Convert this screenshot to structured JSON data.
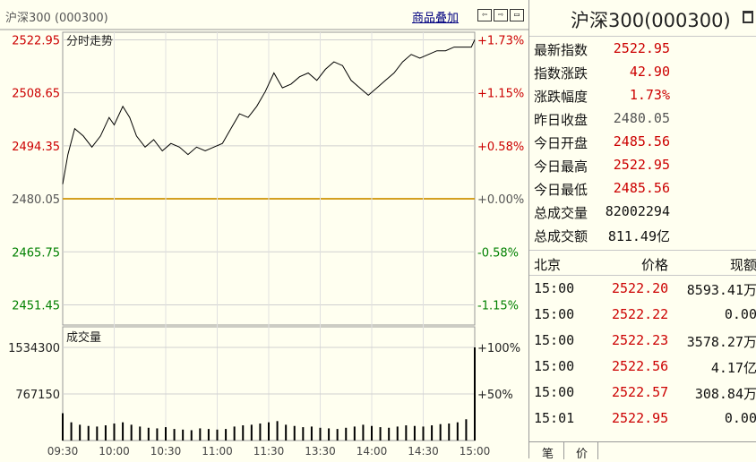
{
  "header": {
    "title": "沪深300 (000300)",
    "overlay_link": "商品叠加",
    "nav_buttons": [
      "⇦",
      "⇨",
      "▭"
    ]
  },
  "price_chart": {
    "label": "分时走势",
    "price_ticks": [
      "2522.95",
      "2508.65",
      "2494.35",
      "2480.05",
      "2465.75",
      "2451.45"
    ],
    "pct_ticks": [
      "+1.73%",
      "+1.15%",
      "+0.58%",
      "+0.00%",
      "-0.58%",
      "-1.15%"
    ]
  },
  "volume_chart": {
    "label": "成交量",
    "vol_ticks": [
      "1534300",
      "767150"
    ],
    "vol_pct_ticks": [
      "+100%",
      "+50%"
    ]
  },
  "time_axis": [
    "09:30",
    "10:00",
    "10:30",
    "11:00",
    "11:30",
    "13:30",
    "14:00",
    "14:30",
    "15:00"
  ],
  "colors": {
    "up": "#cc0000",
    "down": "#008000",
    "neutral": "#555555",
    "price_line": "#000000",
    "baseline": "#d4a020",
    "volume": "#000000"
  },
  "quote_panel": {
    "name": "沪深300(000300)",
    "rows": [
      {
        "label": "最新指数",
        "value": "2522.95",
        "tone": "up"
      },
      {
        "label": "指数涨跌",
        "value": "42.90",
        "tone": "up"
      },
      {
        "label": "涨跌幅度",
        "value": "1.73%",
        "tone": "up"
      },
      {
        "label": "昨日收盘",
        "value": "2480.05",
        "tone": "neutral"
      },
      {
        "label": "今日开盘",
        "value": "2485.56",
        "tone": "up"
      },
      {
        "label": "今日最高",
        "value": "2522.95",
        "tone": "up"
      },
      {
        "label": "今日最低",
        "value": "2485.56",
        "tone": "up"
      },
      {
        "label": "总成交量",
        "value": "82002294",
        "tone": "plain"
      },
      {
        "label": "总成交额",
        "value": "811.49亿",
        "tone": "plain"
      }
    ]
  },
  "ticks_table": {
    "headers": [
      "北京",
      "价格",
      "现额"
    ],
    "rows": [
      {
        "time": "15:00",
        "price": "2522.20",
        "amount": "8593.41万"
      },
      {
        "time": "15:00",
        "price": "2522.22",
        "amount": "0.00"
      },
      {
        "time": "15:00",
        "price": "2522.23",
        "amount": "3578.27万"
      },
      {
        "time": "15:00",
        "price": "2522.56",
        "amount": "4.17亿"
      },
      {
        "time": "15:00",
        "price": "2522.57",
        "amount": "308.84万"
      },
      {
        "time": "15:01",
        "price": "2522.95",
        "amount": "0.00"
      }
    ]
  },
  "bottom_tabs": [
    "笔",
    "价"
  ],
  "chart_data": {
    "type": "line",
    "x_range": [
      "09:30",
      "15:00"
    ],
    "ylim": [
      2446,
      2525
    ],
    "baseline": 2480.05,
    "price_series": [
      [
        "09:30",
        2484
      ],
      [
        "09:33",
        2492
      ],
      [
        "09:37",
        2499
      ],
      [
        "09:42",
        2497
      ],
      [
        "09:47",
        2494
      ],
      [
        "09:52",
        2497
      ],
      [
        "09:57",
        2502
      ],
      [
        "10:00",
        2500
      ],
      [
        "10:05",
        2505
      ],
      [
        "10:09",
        2502
      ],
      [
        "10:13",
        2497
      ],
      [
        "10:18",
        2494
      ],
      [
        "10:23",
        2496
      ],
      [
        "10:28",
        2493
      ],
      [
        "10:33",
        2495
      ],
      [
        "10:38",
        2494
      ],
      [
        "10:43",
        2492
      ],
      [
        "10:48",
        2494
      ],
      [
        "10:53",
        2493
      ],
      [
        "10:58",
        2494
      ],
      [
        "11:03",
        2495
      ],
      [
        "11:08",
        2499
      ],
      [
        "11:13",
        2503
      ],
      [
        "11:18",
        2502
      ],
      [
        "11:23",
        2505
      ],
      [
        "11:28",
        2509
      ],
      [
        "11:30",
        2511
      ],
      [
        "13:03",
        2514
      ],
      [
        "13:08",
        2510
      ],
      [
        "13:13",
        2511
      ],
      [
        "13:18",
        2513
      ],
      [
        "13:23",
        2514
      ],
      [
        "13:28",
        2512
      ],
      [
        "13:33",
        2515
      ],
      [
        "13:38",
        2517
      ],
      [
        "13:43",
        2516
      ],
      [
        "13:48",
        2512
      ],
      [
        "13:53",
        2510
      ],
      [
        "13:58",
        2508
      ],
      [
        "14:03",
        2510
      ],
      [
        "14:08",
        2512
      ],
      [
        "14:13",
        2514
      ],
      [
        "14:18",
        2517
      ],
      [
        "14:23",
        2519
      ],
      [
        "14:28",
        2518
      ],
      [
        "14:33",
        2519
      ],
      [
        "14:38",
        2520
      ],
      [
        "14:43",
        2520
      ],
      [
        "14:48",
        2521
      ],
      [
        "14:53",
        2521
      ],
      [
        "14:58",
        2521
      ],
      [
        "15:00",
        2523
      ]
    ],
    "volume_ylim": [
      0,
      1534300
    ],
    "volume_series": [
      [
        "09:30",
        450000
      ],
      [
        "09:35",
        300000
      ],
      [
        "09:40",
        260000
      ],
      [
        "09:45",
        240000
      ],
      [
        "09:50",
        230000
      ],
      [
        "09:55",
        250000
      ],
      [
        "10:00",
        280000
      ],
      [
        "10:05",
        300000
      ],
      [
        "10:10",
        260000
      ],
      [
        "10:15",
        230000
      ],
      [
        "10:20",
        210000
      ],
      [
        "10:25",
        200000
      ],
      [
        "10:30",
        220000
      ],
      [
        "10:35",
        190000
      ],
      [
        "10:40",
        180000
      ],
      [
        "10:45",
        170000
      ],
      [
        "10:50",
        200000
      ],
      [
        "10:55",
        190000
      ],
      [
        "11:00",
        180000
      ],
      [
        "11:05",
        190000
      ],
      [
        "11:10",
        230000
      ],
      [
        "11:15",
        250000
      ],
      [
        "11:20",
        260000
      ],
      [
        "11:25",
        280000
      ],
      [
        "11:30",
        300000
      ],
      [
        "13:05",
        320000
      ],
      [
        "13:10",
        260000
      ],
      [
        "13:15",
        240000
      ],
      [
        "13:20",
        220000
      ],
      [
        "13:25",
        230000
      ],
      [
        "13:30",
        210000
      ],
      [
        "13:35",
        200000
      ],
      [
        "13:40",
        190000
      ],
      [
        "13:45",
        210000
      ],
      [
        "13:50",
        230000
      ],
      [
        "13:55",
        260000
      ],
      [
        "14:00",
        240000
      ],
      [
        "14:05",
        220000
      ],
      [
        "14:10",
        210000
      ],
      [
        "14:15",
        230000
      ],
      [
        "14:20",
        250000
      ],
      [
        "14:25",
        240000
      ],
      [
        "14:30",
        230000
      ],
      [
        "14:35",
        250000
      ],
      [
        "14:40",
        270000
      ],
      [
        "14:45",
        280000
      ],
      [
        "14:50",
        300000
      ],
      [
        "14:55",
        350000
      ],
      [
        "15:00",
        1534300
      ]
    ]
  }
}
